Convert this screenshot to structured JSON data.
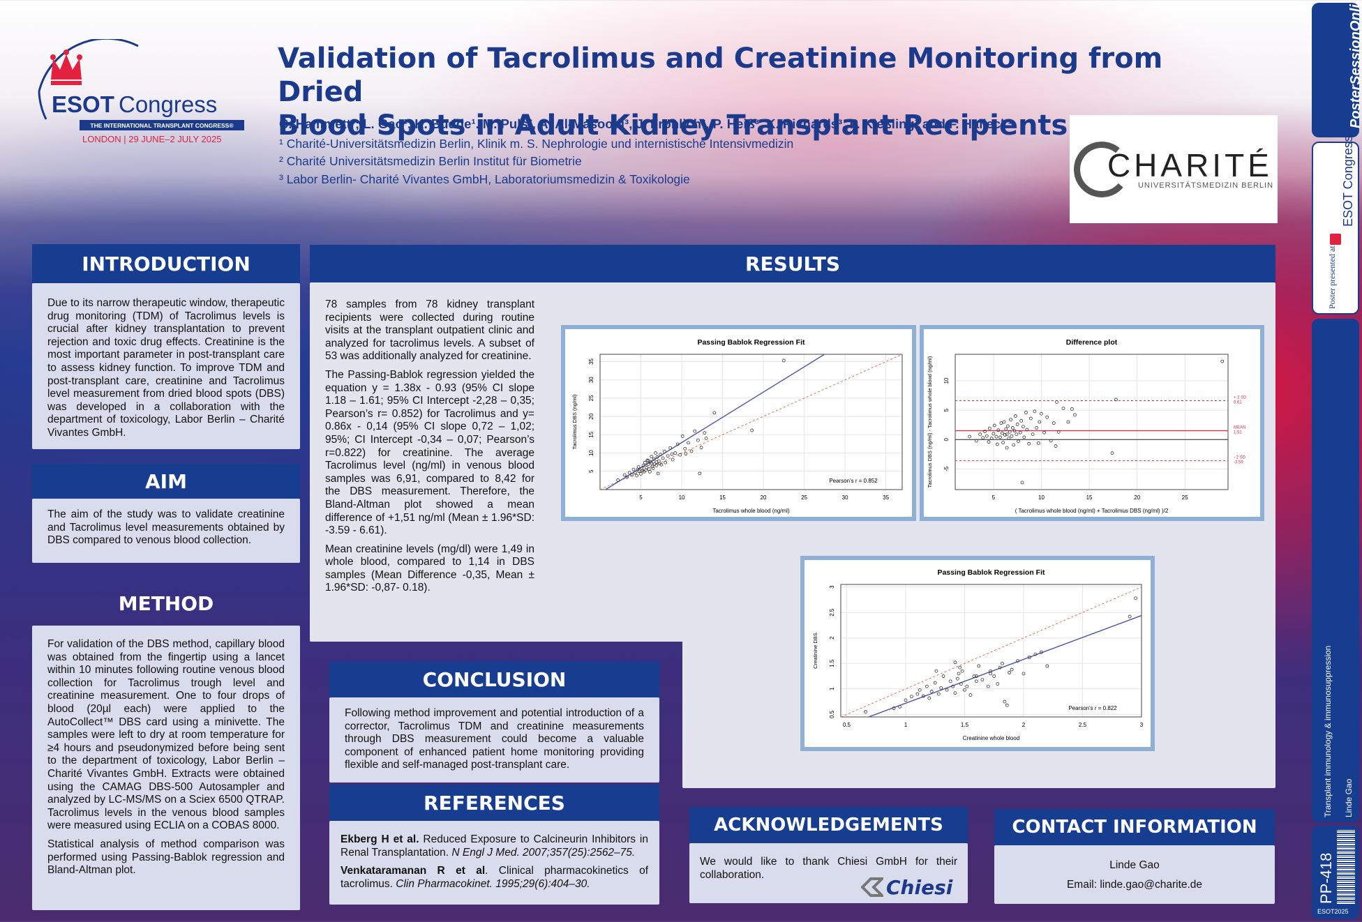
{
  "header": {
    "title_line1": "Validation of Tacrolimus and Creatinine Monitoring from Dried",
    "title_line2": "Blood Spots in Adult Kidney Transplant Recipients",
    "authors": "C. Hammett¹; L. Gao¹, K. Budde¹. M. Puls², A. Al-Masoodi³, J. Fröhlich³, P. Heiß³, K. Richards³, P. Kießling³ and F. Halleck¹",
    "affiliations": [
      "¹ Charité-Universitätsmedizin Berlin, Klinik m. S. Nephrologie und internistische Intensivmedizin",
      "² Charité Universitätsmedizin Berlin Institut für Biometrie",
      "³ Labor Berlin- Charité Vivantes GmbH, Laboratoriumsmedizin & Toxikologie"
    ]
  },
  "esot": {
    "name1": "ESOT",
    "name2": "Congress",
    "banner": "THE INTERNATIONAL TRANSPLANT CONGRESS®",
    "place": "LONDON | 29 JUNE–2 JULY 2025"
  },
  "charite": {
    "name": "CHARITÉ",
    "sub": "UNIVERSITÄTSMEDIZIN BERLIN"
  },
  "intro": {
    "heading": "INTRODUCTION",
    "text": "Due to its narrow therapeutic window, therapeutic drug monitoring (TDM) of Tacrolimus levels is crucial after kidney transplantation to prevent rejection and toxic drug effects. Creatinine is the most important parameter in post-transplant care to assess kidney function. To improve TDM and post-transplant care, creatinine and Tacrolimus level measurement from dried blood spots (DBS) was developed in a collaboration with the department of toxicology, Labor Berlin – Charité Vivantes GmbH."
  },
  "aim": {
    "heading": "AIM",
    "text": "The aim of the study was to validate creatinine and Tacrolimus level measurements obtained by DBS compared to venous blood collection."
  },
  "method": {
    "heading": "METHOD",
    "p1": "For validation of the DBS method, capillary blood was obtained from the fingertip using a lancet within 10 minutes following routine venous blood collection for Tacrolimus trough level and creatinine measurement. One to four drops of blood (20µl each) were applied to the AutoCollect™ DBS card using a minivette. The samples were left to dry at room temperature for ≥4 hours and pseudonymized before being sent to the department of toxicology, Labor Berlin – Charité Vivantes GmbH. Extracts were obtained using the CAMAG DBS-500 Autosampler and analyzed by LC-MS/MS on a Sciex 6500 QTRAP. Tacrolimus levels in the venous blood samples were measured using ECLIA on a COBAS 8000.",
    "p2": "Statistical analysis of method comparison was performed using Passing-Bablok regression and Bland-Altman plot."
  },
  "results": {
    "heading": "RESULTS",
    "p1": "78 samples from 78 kidney transplant recipients were collected during routine visits at the transplant outpatient clinic and analyzed for tacrolimus levels. A subset of 53 was additionally analyzed for creatinine.",
    "p2": "The Passing-Bablok regression yielded the equation y = 1.38x - 0.93 (95% CI slope 1.18 – 1.61; 95% CI Intercept -2,28 – 0,35; Pearson’s r= 0.852) for Tacrolimus and y= 0.86x - 0,14 (95% CI slope 0,72 – 1,02; 95%; CI Intercept -0,34 – 0,07; Pearson’s r=0.822) for creatinine. The average Tacrolimus level (ng/ml) in venous blood samples was 6,91, compared to 8,42 for the DBS measurement. Therefore, the Bland-Altman plot showed a mean difference of +1,51 ng/ml (Mean ± 1.96*SD: -3.59 - 6.61).",
    "p3": "Mean creatinine levels (mg/dl) were 1,49 in whole blood, compared to 1,14 in DBS samples (Mean Difference -0,35, Mean ± 1.96*SD: -0,87- 0.18)."
  },
  "conclusion": {
    "heading": "CONCLUSION",
    "text": "Following method improvement and potential introduction of a corrector, Tacrolimus TDM and creatinine measurements through DBS measurement could become a valuable component of enhanced patient home monitoring providing flexible and self-managed post-transplant care."
  },
  "references": {
    "heading": "REFERENCES",
    "r1_author": "Ekberg H et al.",
    "r1_title": " Reduced Exposure to Calcineurin Inhibitors in Renal Transplantation. ",
    "r1_journal": "N Engl J Med. 2007;357(25):2562–75.",
    "r2_author": "Venkataramanan R et al",
    "r2_title": ". Clinical pharmacokinetics of tacrolimus. ",
    "r2_journal": "Clin Pharmacokinet. 1995;29(6):404–30."
  },
  "ack": {
    "heading": "ACKNOWLEDGEMENTS",
    "text": "We would like to thank Chiesi GmbH for their collaboration.",
    "logo": "Chiesi"
  },
  "contact": {
    "heading": "CONTACT INFORMATION",
    "name": "Linde Gao",
    "email": "Email: linde.gao@charite.de"
  },
  "sidebar": {
    "brand1": "Poster",
    "brand2": "SessionOnline",
    "presented": "Poster presented at:",
    "esot": "ESOT Congress",
    "topic": "Transplant immunology & immunosuppression",
    "author": "Linde Gao",
    "code": "PP-418",
    "year": "ESOT2025"
  },
  "colors": {
    "navy": "#163d8f",
    "panel": "#d9dcec",
    "plot_border": "#8eb0d6",
    "regression": "#4a55a8",
    "identity": "#e07050",
    "sd_line": "#e0304a"
  },
  "chart_data": [
    {
      "type": "scatter",
      "title": "Passing Bablok Regression Fit",
      "xlabel": "Tacrolimus whole blood (ng/ml)",
      "ylabel": "Tacrolimus DBS (ng/ml)",
      "xlim": [
        0,
        37
      ],
      "ylim": [
        0,
        37
      ],
      "xticks": [
        5,
        10,
        15,
        20,
        25,
        30,
        35
      ],
      "yticks": [
        5,
        10,
        15,
        20,
        25,
        30,
        35
      ],
      "annotation": "Pearson's r = 0.852",
      "regression": {
        "slope": 1.38,
        "intercept": -0.93
      },
      "identity": {
        "slope": 1,
        "intercept": 0
      },
      "points": [
        [
          2.2,
          2.6
        ],
        [
          3.0,
          4.0
        ],
        [
          3.3,
          3.4
        ],
        [
          3.6,
          4.6
        ],
        [
          3.9,
          4.0
        ],
        [
          4.1,
          5.5
        ],
        [
          4.3,
          4.6
        ],
        [
          4.5,
          3.8
        ],
        [
          4.7,
          6.2
        ],
        [
          4.8,
          5.0
        ],
        [
          5.0,
          4.3
        ],
        [
          5.1,
          5.8
        ],
        [
          5.3,
          6.6
        ],
        [
          5.4,
          4.9
        ],
        [
          5.5,
          7.4
        ],
        [
          5.6,
          5.3
        ],
        [
          5.7,
          6.0
        ],
        [
          5.8,
          8.0
        ],
        [
          5.9,
          6.9
        ],
        [
          6.0,
          5.6
        ],
        [
          6.1,
          4.9
        ],
        [
          6.2,
          7.6
        ],
        [
          6.3,
          9.0
        ],
        [
          6.4,
          6.3
        ],
        [
          6.5,
          5.8
        ],
        [
          6.6,
          8.3
        ],
        [
          6.7,
          7.0
        ],
        [
          6.8,
          10.0
        ],
        [
          6.9,
          6.6
        ],
        [
          7.0,
          8.9
        ],
        [
          7.1,
          4.4
        ],
        [
          7.2,
          7.8
        ],
        [
          7.4,
          9.6
        ],
        [
          7.5,
          6.8
        ],
        [
          7.7,
          8.6
        ],
        [
          7.9,
          10.4
        ],
        [
          8.0,
          7.4
        ],
        [
          8.3,
          9.2
        ],
        [
          8.6,
          11.4
        ],
        [
          8.9,
          8.2
        ],
        [
          9.2,
          10.0
        ],
        [
          9.5,
          12.4
        ],
        [
          9.8,
          9.5
        ],
        [
          10.1,
          14.6
        ],
        [
          10.4,
          11.2
        ],
        [
          10.8,
          12.8
        ],
        [
          11.2,
          10.5
        ],
        [
          11.6,
          16.0
        ],
        [
          12.0,
          13.5
        ],
        [
          12.4,
          11.5
        ],
        [
          12.8,
          15.5
        ],
        [
          13.0,
          14.0
        ],
        [
          14.0,
          21.0
        ],
        [
          18.6,
          16.2
        ],
        [
          22.5,
          35.3
        ],
        [
          12.2,
          4.4
        ],
        [
          7.3,
          7.1
        ],
        [
          5.2,
          5.2
        ],
        [
          6.9,
          7.5
        ],
        [
          8.8,
          9.7
        ],
        [
          10.5,
          9.8
        ],
        [
          6.3,
          7.2
        ],
        [
          4.6,
          5.5
        ],
        [
          5.9,
          7.9
        ]
      ]
    },
    {
      "type": "scatter",
      "title": "Difference plot",
      "xlabel": "( Tacrolimus whole blood (ng/ml) + Tacrolimus DBS (ng/ml) )/2",
      "ylabel": "Tacrolimus DBS (ng/ml) - Tacrolimus whole blood (ng/ml)",
      "xlim": [
        1,
        29.5
      ],
      "ylim": [
        -8.5,
        14.5
      ],
      "xticks": [
        5,
        10,
        15,
        20,
        25
      ],
      "yticks": [
        -5,
        0,
        5,
        10
      ],
      "lines": [
        {
          "name": "+ 2 SD",
          "value": 6.61,
          "label": "6.61"
        },
        {
          "name": "MEAN",
          "value": 1.51,
          "label": "1.51"
        },
        {
          "name": "- 2 SD",
          "value": -3.59,
          "label": "-3.59"
        }
      ],
      "points": [
        [
          2.5,
          0.5
        ],
        [
          3.2,
          -0.2
        ],
        [
          3.6,
          0.9
        ],
        [
          3.9,
          0.3
        ],
        [
          4.1,
          1.4
        ],
        [
          4.3,
          0.6
        ],
        [
          4.5,
          -0.4
        ],
        [
          4.6,
          1.9
        ],
        [
          4.8,
          0.2
        ],
        [
          5.0,
          1.0
        ],
        [
          5.1,
          2.4
        ],
        [
          5.3,
          0.5
        ],
        [
          5.4,
          -0.8
        ],
        [
          5.5,
          1.6
        ],
        [
          5.7,
          0.4
        ],
        [
          5.8,
          2.8
        ],
        [
          5.9,
          1.1
        ],
        [
          6.0,
          -0.5
        ],
        [
          6.1,
          3.0
        ],
        [
          6.2,
          0.8
        ],
        [
          6.3,
          1.8
        ],
        [
          6.4,
          -1.4
        ],
        [
          6.5,
          2.3
        ],
        [
          6.6,
          0.2
        ],
        [
          6.7,
          1.3
        ],
        [
          6.8,
          3.4
        ],
        [
          6.9,
          0.6
        ],
        [
          7.0,
          2.0
        ],
        [
          7.1,
          -0.9
        ],
        [
          7.2,
          1.5
        ],
        [
          7.3,
          4.0
        ],
        [
          7.4,
          0.9
        ],
        [
          7.5,
          2.6
        ],
        [
          7.6,
          -0.3
        ],
        [
          7.8,
          1.2
        ],
        [
          7.9,
          3.2
        ],
        [
          8.0,
          -7.3
        ],
        [
          8.1,
          2.2
        ],
        [
          8.2,
          0.4
        ],
        [
          8.4,
          4.6
        ],
        [
          8.5,
          1.7
        ],
        [
          8.7,
          -0.7
        ],
        [
          8.9,
          3.6
        ],
        [
          9.1,
          0.9
        ],
        [
          9.3,
          4.8
        ],
        [
          9.5,
          2.0
        ],
        [
          9.7,
          -0.6
        ],
        [
          10.0,
          4.4
        ],
        [
          10.3,
          1.2
        ],
        [
          10.6,
          3.8
        ],
        [
          11.0,
          -0.2
        ],
        [
          11.3,
          2.8
        ],
        [
          11.6,
          6.4
        ],
        [
          11.8,
          1.3
        ],
        [
          12.3,
          5.3
        ],
        [
          12.8,
          3.0
        ],
        [
          13.5,
          4.2
        ],
        [
          13.2,
          5.2
        ],
        [
          17.4,
          -2.3
        ],
        [
          17.8,
          6.8
        ],
        [
          28.9,
          13.3
        ],
        [
          11.5,
          -1.1
        ],
        [
          9.8,
          3.0
        ],
        [
          6.4,
          0.9
        ]
      ]
    },
    {
      "type": "scatter",
      "title": "Passing Bablok Regression Fit",
      "xlabel": "Creatinine whole blood",
      "ylabel": "Creatinine DBS",
      "xlim": [
        0.45,
        3.0
      ],
      "ylim": [
        0.45,
        3.05
      ],
      "xticks": [
        0.5,
        1.0,
        1.5,
        2.0,
        2.5,
        3.0
      ],
      "yticks": [
        0.5,
        1.0,
        1.5,
        2.0,
        2.5,
        3.0
      ],
      "annotation": "Pearson's r = 0.822",
      "regression": {
        "slope": 0.86,
        "intercept": -0.14
      },
      "identity": {
        "slope": 1,
        "intercept": 0
      },
      "points": [
        [
          0.66,
          0.55
        ],
        [
          0.9,
          0.62
        ],
        [
          0.95,
          0.65
        ],
        [
          1.0,
          0.78
        ],
        [
          1.05,
          0.85
        ],
        [
          1.1,
          0.9
        ],
        [
          1.12,
          0.98
        ],
        [
          1.15,
          0.86
        ],
        [
          1.18,
          1.05
        ],
        [
          1.2,
          0.82
        ],
        [
          1.22,
          0.95
        ],
        [
          1.25,
          1.12
        ],
        [
          1.28,
          0.9
        ],
        [
          1.3,
          1.02
        ],
        [
          1.32,
          1.25
        ],
        [
          1.35,
          0.98
        ],
        [
          1.38,
          1.15
        ],
        [
          1.4,
          1.05
        ],
        [
          1.42,
          0.92
        ],
        [
          1.44,
          1.2
        ],
        [
          1.45,
          1.3
        ],
        [
          1.46,
          1.42
        ],
        [
          1.47,
          1.1
        ],
        [
          1.48,
          1.35
        ],
        [
          1.5,
          0.98
        ],
        [
          1.52,
          1.05
        ],
        [
          1.55,
          0.88
        ],
        [
          1.58,
          1.25
        ],
        [
          1.6,
          1.15
        ],
        [
          1.62,
          1.45
        ],
        [
          1.65,
          1.18
        ],
        [
          1.7,
          1.05
        ],
        [
          1.72,
          1.35
        ],
        [
          1.75,
          1.25
        ],
        [
          1.78,
          1.1
        ],
        [
          1.8,
          1.42
        ],
        [
          1.82,
          1.5
        ],
        [
          1.84,
          0.75
        ],
        [
          1.86,
          0.68
        ],
        [
          1.88,
          1.32
        ],
        [
          1.9,
          1.38
        ],
        [
          1.95,
          1.55
        ],
        [
          2.0,
          1.3
        ],
        [
          2.05,
          1.62
        ],
        [
          2.1,
          1.68
        ],
        [
          2.15,
          1.72
        ],
        [
          2.2,
          1.45
        ],
        [
          2.9,
          2.42
        ],
        [
          2.95,
          2.78
        ],
        [
          1.26,
          1.35
        ],
        [
          1.42,
          1.52
        ],
        [
          1.6,
          1.25
        ],
        [
          1.72,
          1.3
        ]
      ]
    }
  ]
}
